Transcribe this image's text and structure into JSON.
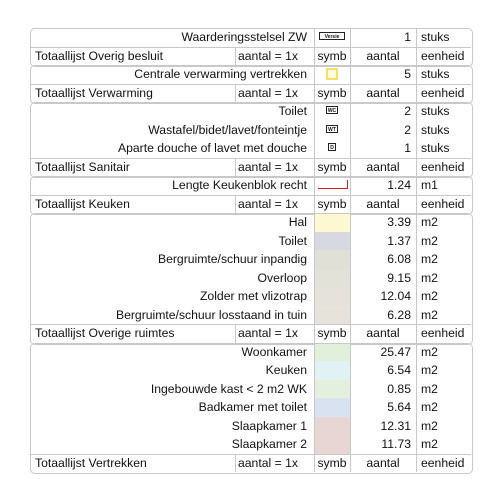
{
  "rows": [
    {
      "kind": "item",
      "label": "Waarderingsstelsel ZW",
      "symbol": {
        "type": "badge",
        "text": "Versie"
      },
      "value": "1",
      "unit": "stuks"
    },
    {
      "kind": "total",
      "label": "Totaallijst Overig besluit",
      "aantal": "aantal = 1x",
      "symb": "symb",
      "aantal2": "aantal",
      "eenheid": "eenheid"
    },
    {
      "kind": "item",
      "label": "Centrale verwarming vertrekken",
      "symbol": {
        "type": "square",
        "color": "#f3e06a",
        "fill": "#fffbe0"
      },
      "value": "5",
      "unit": "stuks"
    },
    {
      "kind": "total",
      "label": "Totaallijst Verwarming",
      "aantal": "aantal = 1x",
      "symb": "symb",
      "aantal2": "aantal",
      "eenheid": "eenheid"
    },
    {
      "kind": "item",
      "label": "Toilet",
      "symbol": {
        "type": "badge",
        "text": "WC"
      },
      "value": "2",
      "unit": "stuks"
    },
    {
      "kind": "item",
      "label": "Wastafel/bidet/lavet/fonteintje",
      "symbol": {
        "type": "badge",
        "text": "WT"
      },
      "value": "2",
      "unit": "stuks"
    },
    {
      "kind": "item",
      "label": "Aparte douche of lavet met douche",
      "symbol": {
        "type": "badge",
        "text": "D"
      },
      "value": "1",
      "unit": "stuks"
    },
    {
      "kind": "total",
      "label": "Totaallijst Sanitair",
      "aantal": "aantal = 1x",
      "symb": "symb",
      "aantal2": "aantal",
      "eenheid": "eenheid"
    },
    {
      "kind": "item",
      "label": "Lengte Keukenblok recht",
      "symbol": {
        "type": "redline",
        "color": "#d42020"
      },
      "value": "1.24",
      "unit": "m1"
    },
    {
      "kind": "total",
      "label": "Totaallijst Keuken",
      "aantal": "aantal = 1x",
      "symb": "symb",
      "aantal2": "aantal",
      "eenheid": "eenheid"
    },
    {
      "kind": "item",
      "label": "Hal",
      "symbol": {
        "type": "fill",
        "color": "#fdf7d2"
      },
      "value": "3.39",
      "unit": "m2"
    },
    {
      "kind": "item",
      "label": "Toilet",
      "symbol": {
        "type": "fill",
        "color": "#d8d8e2"
      },
      "value": "1.37",
      "unit": "m2"
    },
    {
      "kind": "item",
      "label": "Bergruimte/schuur inpandig",
      "symbol": {
        "type": "fill",
        "color": "#e0e0d6"
      },
      "value": "6.08",
      "unit": "m2"
    },
    {
      "kind": "item",
      "label": "Overloop",
      "symbol": {
        "type": "fill",
        "color": "#e2e2d8"
      },
      "value": "9.15",
      "unit": "m2"
    },
    {
      "kind": "item",
      "label": "Zolder met vlizotrap",
      "symbol": {
        "type": "fill",
        "color": "#e4e2da"
      },
      "value": "12.04",
      "unit": "m2"
    },
    {
      "kind": "item",
      "label": "Bergruimte/schuur losstaand in tuin",
      "symbol": {
        "type": "fill",
        "color": "#e6e4da"
      },
      "value": "6.28",
      "unit": "m2"
    },
    {
      "kind": "total",
      "label": "Totaallijst Overige ruimtes",
      "aantal": "aantal = 1x",
      "symb": "symb",
      "aantal2": "aantal",
      "eenheid": "eenheid"
    },
    {
      "kind": "item",
      "label": "Woonkamer",
      "symbol": {
        "type": "fill",
        "color": "#e0f0da"
      },
      "value": "25.47",
      "unit": "m2"
    },
    {
      "kind": "item",
      "label": "Keuken",
      "symbol": {
        "type": "fill",
        "color": "#e0f2f4"
      },
      "value": "6.54",
      "unit": "m2"
    },
    {
      "kind": "item",
      "label": "Ingebouwde kast <  2 m2 WK",
      "symbol": {
        "type": "fill",
        "color": "#e4f0de"
      },
      "value": "0.85",
      "unit": "m2"
    },
    {
      "kind": "item",
      "label": "Badkamer met toilet",
      "symbol": {
        "type": "fill",
        "color": "#d8e2f0"
      },
      "value": "5.64",
      "unit": "m2"
    },
    {
      "kind": "item",
      "label": "Slaapkamer 1",
      "symbol": {
        "type": "fill",
        "color": "#e8d6d4"
      },
      "value": "12.31",
      "unit": "m2"
    },
    {
      "kind": "item",
      "label": "Slaapkamer 2",
      "symbol": {
        "type": "fill",
        "color": "#e8d6d4"
      },
      "value": "11.73",
      "unit": "m2"
    },
    {
      "kind": "total",
      "label": "Totaallijst Vertrekken",
      "aantal": "aantal = 1x",
      "symb": "symb",
      "aantal2": "aantal",
      "eenheid": "eenheid"
    }
  ]
}
